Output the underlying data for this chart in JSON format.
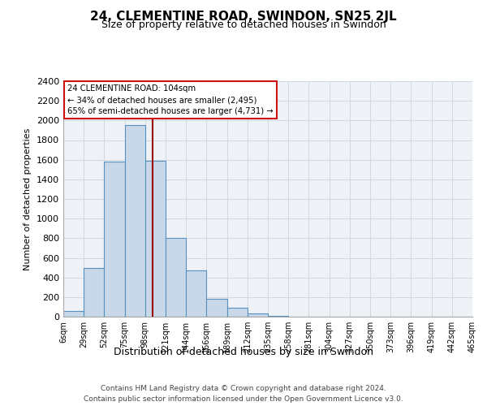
{
  "title": "24, CLEMENTINE ROAD, SWINDON, SN25 2JL",
  "subtitle": "Size of property relative to detached houses in Swindon",
  "xlabel": "Distribution of detached houses by size in Swindon",
  "ylabel": "Number of detached properties",
  "footnote1": "Contains HM Land Registry data © Crown copyright and database right 2024.",
  "footnote2": "Contains public sector information licensed under the Open Government Licence v3.0.",
  "bin_labels": [
    "6sqm",
    "29sqm",
    "52sqm",
    "75sqm",
    "98sqm",
    "121sqm",
    "144sqm",
    "166sqm",
    "189sqm",
    "212sqm",
    "235sqm",
    "258sqm",
    "281sqm",
    "304sqm",
    "327sqm",
    "350sqm",
    "373sqm",
    "396sqm",
    "419sqm",
    "442sqm",
    "465sqm"
  ],
  "bar_heights": [
    55,
    500,
    1580,
    1950,
    1590,
    800,
    470,
    185,
    90,
    35,
    5,
    0,
    0,
    0,
    0,
    0,
    0,
    0,
    0,
    0
  ],
  "bar_color": "#c8d8e8",
  "bar_edge_color": "#5590c0",
  "grid_color": "#d0d8e0",
  "bg_color": "#eef2f7",
  "marker_bin_index": 4.35,
  "annotation_line1": "24 CLEMENTINE ROAD: 104sqm",
  "annotation_line2": "← 34% of detached houses are smaller (2,495)",
  "annotation_line3": "65% of semi-detached houses are larger (4,731) →",
  "ylim": [
    0,
    2400
  ],
  "yticks": [
    0,
    200,
    400,
    600,
    800,
    1000,
    1200,
    1400,
    1600,
    1800,
    2000,
    2200,
    2400
  ]
}
